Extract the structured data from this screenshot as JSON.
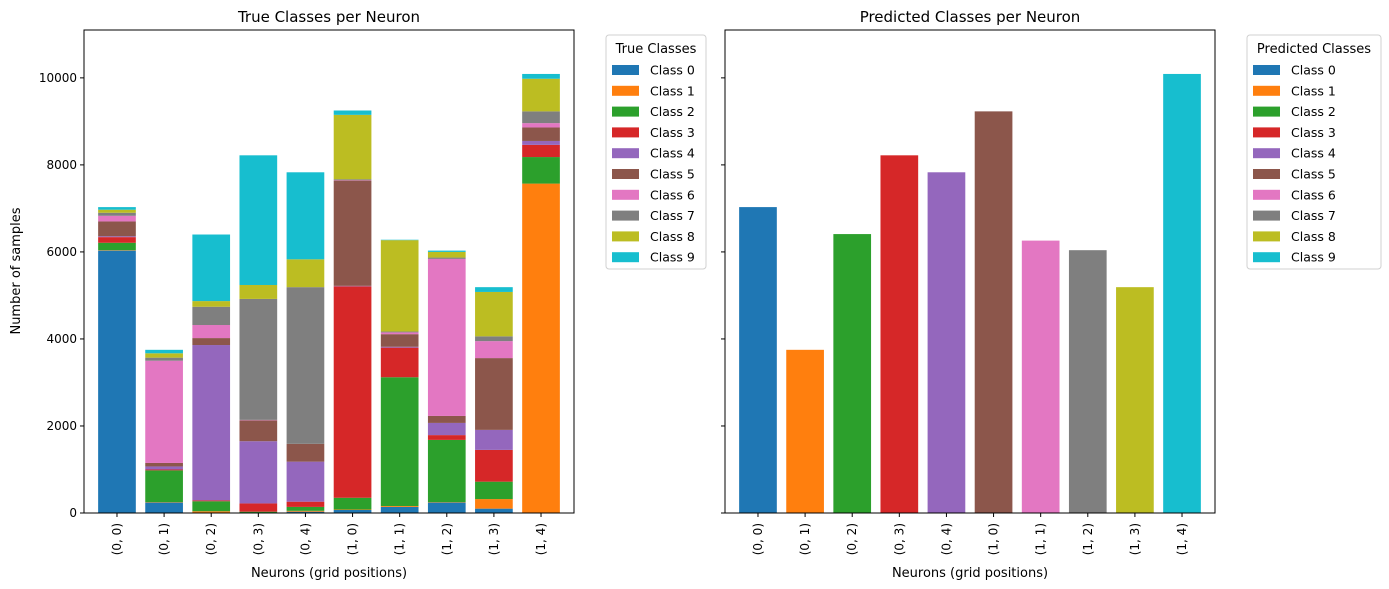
{
  "chart_data": [
    {
      "type": "bar",
      "stacked": true,
      "title": "True Classes per Neuron",
      "xlabel": "Neurons (grid positions)",
      "ylabel": "Number of samples",
      "ylim": [
        0,
        11100
      ],
      "yticks": [
        0,
        2000,
        4000,
        6000,
        8000,
        10000
      ],
      "categories": [
        "(0, 0)",
        "(0, 1)",
        "(0, 2)",
        "(0, 3)",
        "(0, 4)",
        "(1, 0)",
        "(1, 1)",
        "(1, 2)",
        "(1, 3)",
        "(1, 4)"
      ],
      "legend": {
        "title": "True Classes",
        "placement": "outside-upper-right"
      },
      "series": [
        {
          "name": "Class 0",
          "color": "#1f77b4",
          "values": [
            6030,
            240,
            10,
            10,
            30,
            70,
            140,
            240,
            100,
            10
          ]
        },
        {
          "name": "Class 1",
          "color": "#ff7f0e",
          "values": [
            10,
            10,
            30,
            0,
            20,
            10,
            20,
            10,
            220,
            7560
          ]
        },
        {
          "name": "Class 2",
          "color": "#2ca02c",
          "values": [
            170,
            730,
            230,
            20,
            90,
            270,
            2960,
            1430,
            400,
            610
          ]
        },
        {
          "name": "Class 3",
          "color": "#d62728",
          "values": [
            130,
            20,
            20,
            190,
            120,
            4860,
            680,
            110,
            730,
            280
          ]
        },
        {
          "name": "Class 4",
          "color": "#9467bd",
          "values": [
            20,
            70,
            3570,
            1430,
            920,
            10,
            20,
            280,
            460,
            90
          ]
        },
        {
          "name": "Class 5",
          "color": "#8c564b",
          "values": [
            340,
            80,
            160,
            480,
            410,
            2420,
            290,
            160,
            1650,
            310
          ]
        },
        {
          "name": "Class 6",
          "color": "#e377c2",
          "values": [
            130,
            2350,
            300,
            10,
            0,
            10,
            40,
            3610,
            390,
            100
          ]
        },
        {
          "name": "Class 7",
          "color": "#7f7f7f",
          "values": [
            70,
            70,
            420,
            2780,
            3600,
            20,
            20,
            30,
            110,
            270
          ]
        },
        {
          "name": "Class 8",
          "color": "#bcbd22",
          "values": [
            70,
            100,
            130,
            320,
            640,
            1480,
            2100,
            130,
            1020,
            750
          ]
        },
        {
          "name": "Class 9",
          "color": "#17becf",
          "values": [
            60,
            80,
            1530,
            2980,
            2000,
            100,
            10,
            30,
            110,
            110
          ]
        }
      ]
    },
    {
      "type": "bar",
      "title": "Predicted Classes per Neuron",
      "xlabel": "Neurons (grid positions)",
      "ylabel": "",
      "ylim": [
        0,
        11100
      ],
      "yticks": [
        0,
        2000,
        4000,
        6000,
        8000,
        10000
      ],
      "ytick_labels_visible": false,
      "categories": [
        "(0, 0)",
        "(0, 1)",
        "(0, 2)",
        "(0, 3)",
        "(0, 4)",
        "(1, 0)",
        "(1, 1)",
        "(1, 2)",
        "(1, 3)",
        "(1, 4)"
      ],
      "values": [
        7030,
        3750,
        6410,
        8220,
        7830,
        9230,
        6260,
        6040,
        5190,
        10090
      ],
      "bar_classes": [
        "Class 0",
        "Class 1",
        "Class 2",
        "Class 3",
        "Class 4",
        "Class 5",
        "Class 6",
        "Class 7",
        "Class 8",
        "Class 9"
      ],
      "legend": {
        "title": "Predicted Classes",
        "placement": "outside-upper-right",
        "entries": [
          "Class 0",
          "Class 1",
          "Class 2",
          "Class 3",
          "Class 4",
          "Class 5",
          "Class 6",
          "Class 7",
          "Class 8",
          "Class 9"
        ]
      },
      "colors": [
        "#1f77b4",
        "#ff7f0e",
        "#2ca02c",
        "#d62728",
        "#9467bd",
        "#8c564b",
        "#e377c2",
        "#7f7f7f",
        "#bcbd22",
        "#17becf"
      ]
    }
  ]
}
